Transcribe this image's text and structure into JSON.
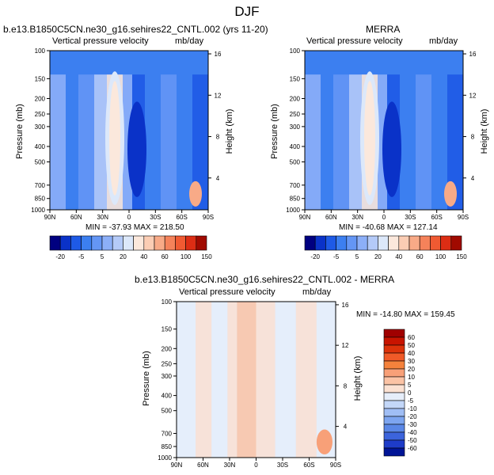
{
  "figure": {
    "title": "DJF"
  },
  "panels": [
    {
      "title": "b.e13.B1850C5CN.ne30_g16.sehires22_CNTL.002 (yrs 11-20)",
      "left_label": "Vertical pressure velocity",
      "right_label": "mb/day",
      "minmax": "MIN = -37.93   MAX = 218.50"
    },
    {
      "title": "MERRA",
      "left_label": "Vertical pressure velocity",
      "right_label": "mb/day",
      "minmax": "MIN = -40.68   MAX = 127.14"
    },
    {
      "title": "b.e13.B1850C5CN.ne30_g16.sehires22_CNTL.002 - MERRA",
      "left_label": "Vertical pressure velocity",
      "right_label": "mb/day",
      "minmax": "MIN = -14.80   MAX = 159.45"
    }
  ],
  "axes": {
    "ylabel": "Pressure (mb)",
    "y2label": "Height (km)"
  },
  "chart_data": [
    {
      "type": "heatmap",
      "x_ticks": [
        "90N",
        "60N",
        "30N",
        "0",
        "30S",
        "60S",
        "90S"
      ],
      "y_ticks": [
        "100",
        "150",
        "200",
        "250",
        "300",
        "400",
        "500",
        "700",
        "850",
        "1000"
      ],
      "y2_ticks": [
        "16",
        "12",
        "8",
        "4"
      ],
      "colorbar_levels": [
        "-20",
        "-5",
        "5",
        "20",
        "40",
        "60",
        "100",
        "150"
      ],
      "colorbar_colors": [
        "#000080",
        "#0a32c8",
        "#1e5ae6",
        "#3c7ff0",
        "#6496f5",
        "#8caff8",
        "#b4caf8",
        "#dce8fa",
        "#fbe8dc",
        "#fbcdb4",
        "#f8aa87",
        "#f5825a",
        "#f05a32",
        "#dc2d14",
        "#a00a00"
      ]
    },
    {
      "type": "heatmap",
      "x_ticks": [
        "90N",
        "60N",
        "30N",
        "0",
        "30S",
        "60S",
        "90S"
      ],
      "y_ticks": [
        "100",
        "150",
        "200",
        "250",
        "300",
        "400",
        "500",
        "700",
        "850",
        "1000"
      ],
      "y2_ticks": [
        "16",
        "12",
        "8",
        "4"
      ],
      "colorbar_levels": [
        "-20",
        "-5",
        "5",
        "20",
        "40",
        "60",
        "100",
        "150"
      ],
      "colorbar_colors": [
        "#000080",
        "#0a32c8",
        "#1e5ae6",
        "#3c7ff0",
        "#6496f5",
        "#8caff8",
        "#b4caf8",
        "#dce8fa",
        "#fbe8dc",
        "#fbcdb4",
        "#f8aa87",
        "#f5825a",
        "#f05a32",
        "#dc2d14",
        "#a00a00"
      ]
    },
    {
      "type": "heatmap",
      "x_ticks": [
        "90N",
        "60N",
        "30N",
        "0",
        "30S",
        "60S",
        "90S"
      ],
      "y_ticks": [
        "100",
        "150",
        "200",
        "250",
        "300",
        "400",
        "500",
        "700",
        "850",
        "1000"
      ],
      "y2_ticks": [
        "16",
        "12",
        "8",
        "4"
      ],
      "colorbar_levels": [
        "60",
        "50",
        "40",
        "30",
        "20",
        "10",
        "5",
        "0",
        "-5",
        "-10",
        "-20",
        "-30",
        "-40",
        "-50",
        "-60"
      ],
      "colorbar_colors": [
        "#a00000",
        "#c81400",
        "#dc320a",
        "#f05a28",
        "#f5823c",
        "#f8a078",
        "#fbc3a5",
        "#fbe1d2",
        "#e6eefa",
        "#c3d7f8",
        "#a0bef5",
        "#7da5f0",
        "#5a87e6",
        "#3c64dc",
        "#1e3cc8",
        "#001496"
      ]
    }
  ]
}
